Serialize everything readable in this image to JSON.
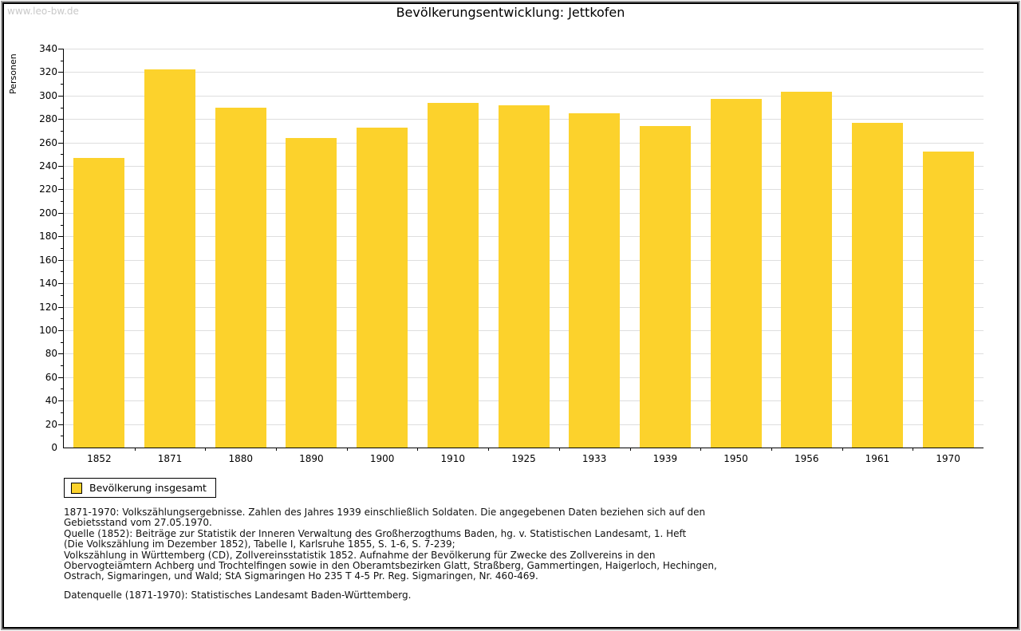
{
  "watermark": "www.leo-bw.de",
  "legend": {
    "label": "Bevölkerung insgesamt"
  },
  "colors": {
    "bar": "#FCD22C",
    "grid": "#DEDEDE",
    "axis": "#000000",
    "watermark": "#C9C9C9"
  },
  "chart_data": {
    "type": "bar",
    "title": "Bevölkerungsentwicklung: Jettkofen",
    "ylabel": "Personen",
    "xlabel": "",
    "categories": [
      "1852",
      "1871",
      "1880",
      "1890",
      "1900",
      "1910",
      "1925",
      "1933",
      "1939",
      "1950",
      "1956",
      "1961",
      "1970"
    ],
    "values": [
      247,
      322,
      290,
      264,
      273,
      294,
      292,
      285,
      274,
      297,
      303,
      277,
      252
    ],
    "ylim": [
      0,
      340
    ],
    "ytick_step": 20,
    "yminor_step": 10,
    "grid": true,
    "legend_position": "bottom-left",
    "legend_entries": [
      "Bevölkerung insgesamt"
    ]
  },
  "footer": {
    "lines": [
      "1871-1970: Volkszählungsergebnisse. Zahlen des Jahres 1939 einschließlich Soldaten. Die angegebenen Daten beziehen sich auf den",
      "Gebietsstand vom 27.05.1970.",
      "Quelle (1852): Beiträge zur Statistik der Inneren Verwaltung des Großherzogthums Baden, hg. v. Statistischen Landesamt, 1. Heft",
      "(Die Volkszählung im Dezember 1852), Tabelle I, Karlsruhe 1855, S. 1-6, S. 7-239;",
      "Volkszählung in Württemberg (CD), Zollvereinsstatistik 1852. Aufnahme der Bevölkerung für Zwecke des Zollvereins in den",
      "Obervogteiämtern Achberg und Trochtelfingen sowie in den Oberamtsbezirken Glatt, Straßberg, Gammertingen, Haigerloch, Hechingen,",
      "Ostrach, Sigmaringen, und Wald; StA Sigmaringen Ho 235 T 4-5 Pr. Reg. Sigmaringen, Nr. 460-469."
    ],
    "datasource": "Datenquelle (1871-1970): Statistisches Landesamt Baden-Württemberg."
  }
}
